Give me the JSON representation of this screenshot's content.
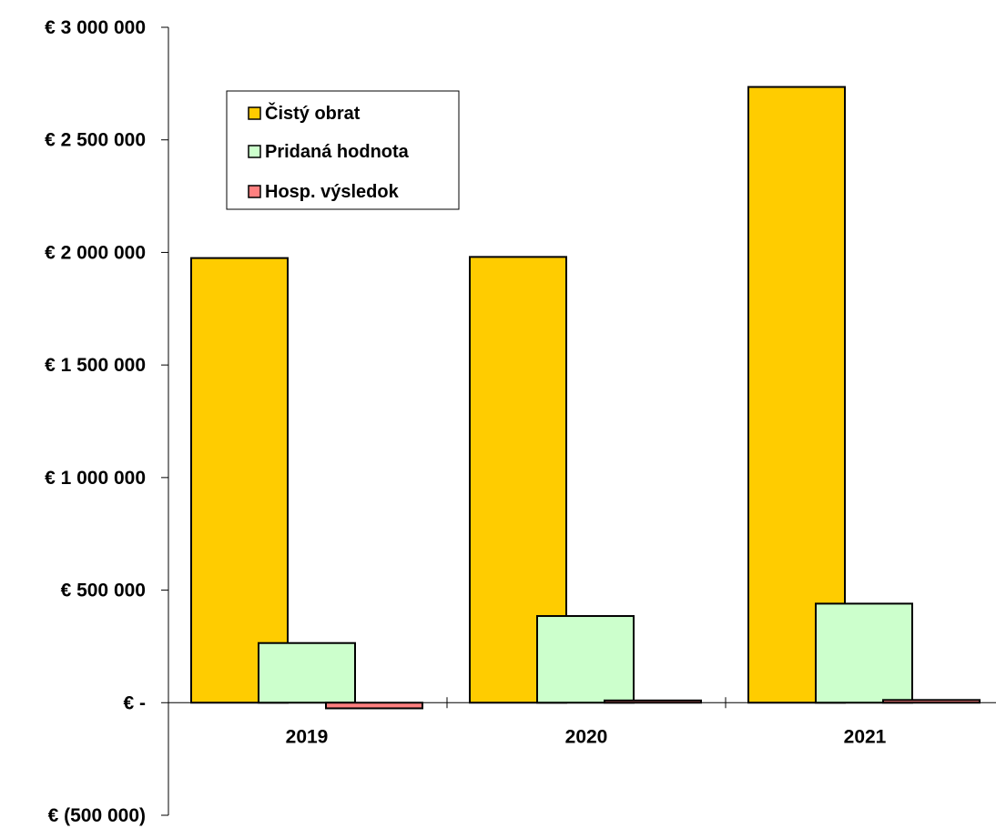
{
  "chart_data": {
    "type": "bar",
    "title": "",
    "xlabel": "",
    "ylabel": "",
    "categories": [
      "2019",
      "2020",
      "2021"
    ],
    "series": [
      {
        "name": "Čistý obrat",
        "color": "#FFCC00",
        "values": [
          1975000,
          1980000,
          2735000
        ]
      },
      {
        "name": "Pridaná hodnota",
        "color": "#CCFFCC",
        "values": [
          265000,
          385000,
          440000
        ]
      },
      {
        "name": "Hosp. výsledok",
        "color": "#FF8080",
        "values": [
          -25000,
          10000,
          12000
        ]
      }
    ],
    "ylim": [
      -500000,
      3000000
    ],
    "yticks": [
      {
        "value": 3000000,
        "label": "€ 3 000 000"
      },
      {
        "value": 2500000,
        "label": "€ 2 500 000"
      },
      {
        "value": 2000000,
        "label": "€ 2 000 000"
      },
      {
        "value": 1500000,
        "label": "€ 1 500 000"
      },
      {
        "value": 1000000,
        "label": "€ 1 000 000"
      },
      {
        "value": 500000,
        "label": "€ 500 000"
      },
      {
        "value": 0,
        "label": "€ -"
      },
      {
        "value": -500000,
        "label": "€ (500 000)"
      }
    ],
    "grid": false,
    "legend_position": "top-left"
  }
}
